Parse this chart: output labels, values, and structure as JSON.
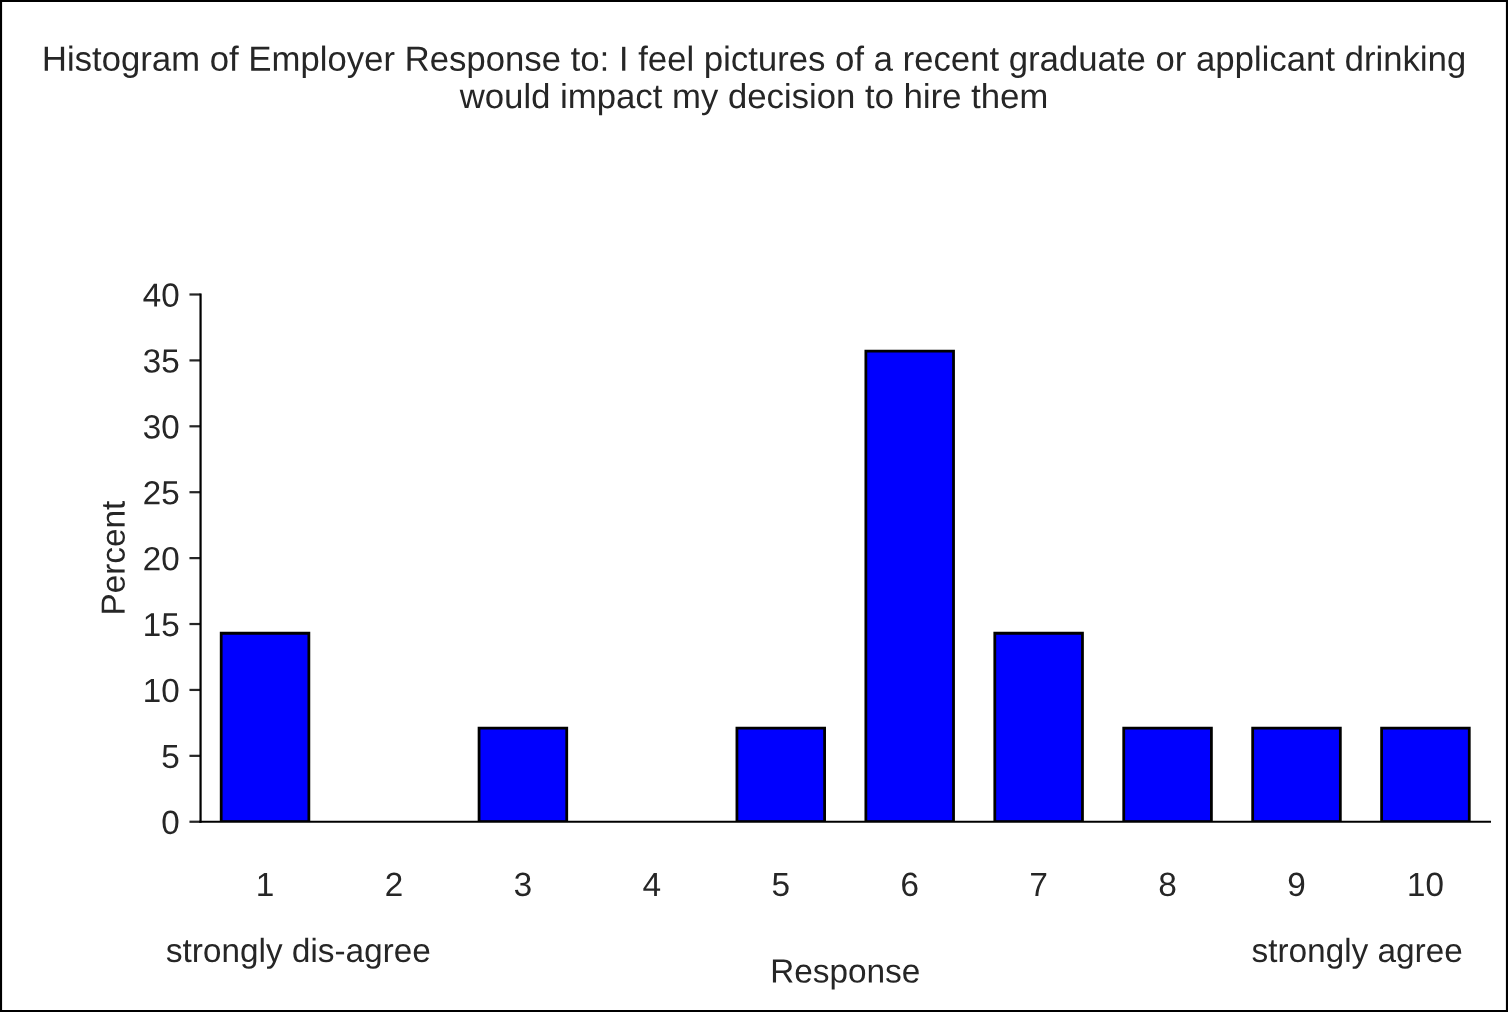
{
  "chart_data": {
    "type": "bar",
    "title": "Histogram of Employer Response to: I feel pictures of a recent graduate or applicant drinking would impact my decision to hire them",
    "categories": [
      "1",
      "2",
      "3",
      "4",
      "5",
      "6",
      "7",
      "8",
      "9",
      "10"
    ],
    "values": [
      14.3,
      0,
      7.1,
      0,
      7.1,
      35.7,
      14.3,
      7.1,
      7.1,
      7.1
    ],
    "color": "#0000ff",
    "xlabel": "Response",
    "ylabel": "Percent",
    "ylim": [
      0,
      40
    ],
    "yticks": [
      0,
      5,
      10,
      15,
      20,
      25,
      30,
      35,
      40
    ],
    "annotations": [
      "strongly dis-agree",
      "strongly agree"
    ],
    "grid": false,
    "legend": false
  }
}
